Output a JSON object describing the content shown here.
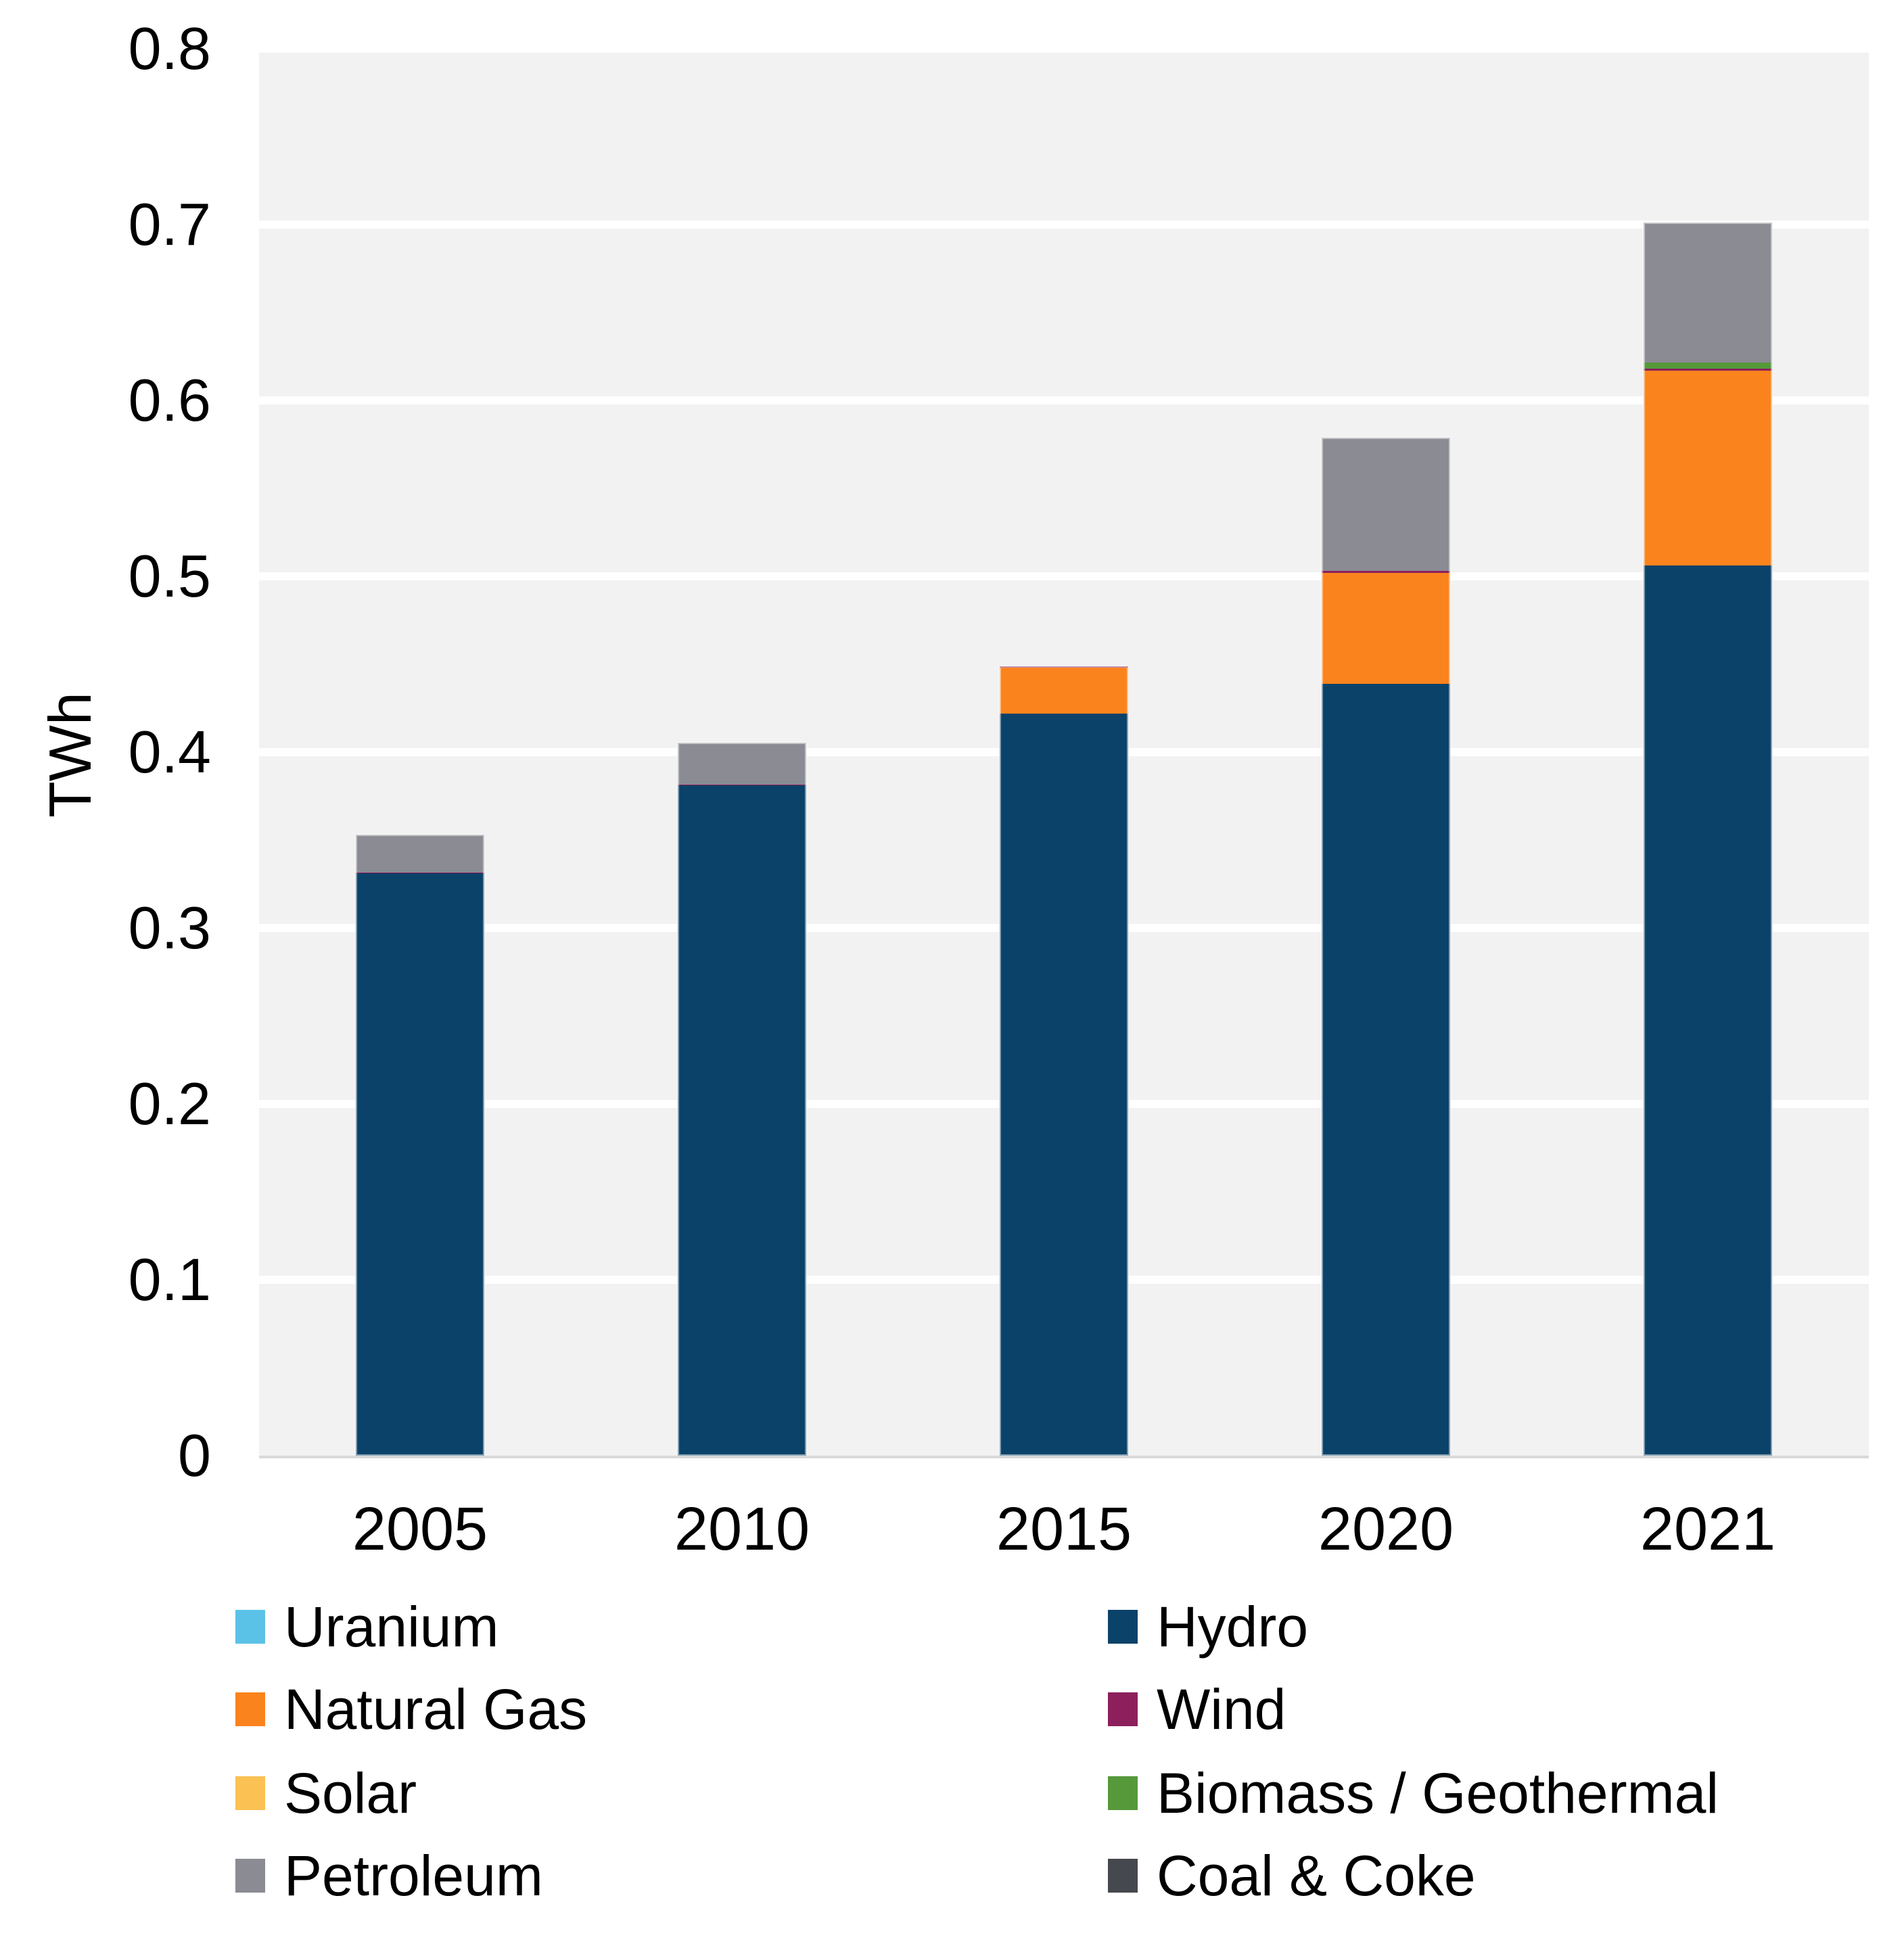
{
  "chart_data": {
    "type": "bar",
    "stacked": true,
    "title": "",
    "ylabel": "TWh",
    "xlabel": "",
    "categories": [
      "2005",
      "2010",
      "2015",
      "2020",
      "2021"
    ],
    "ylim": [
      0,
      0.8
    ],
    "ytick_step": 0.1,
    "yticks": [
      "0",
      "0.1",
      "0.2",
      "0.3",
      "0.4",
      "0.5",
      "0.6",
      "0.7",
      "0.8"
    ],
    "grid": "horizontal-white-lines-on-light-gray-band",
    "plot_background": "#F2F2F2",
    "gridline_color": "#FFFFFF",
    "axis_line_color": "#D9D9D9",
    "series": [
      {
        "name": "Uranium",
        "color": "#5BC2E7",
        "values": [
          0,
          0,
          0,
          0,
          0
        ]
      },
      {
        "name": "Hydro",
        "color": "#0B4269",
        "values": [
          0.331,
          0.381,
          0.422,
          0.439,
          0.506
        ]
      },
      {
        "name": "Natural Gas",
        "color": "#FB831D",
        "values": [
          0,
          0,
          0.026,
          0.063,
          0.111
        ]
      },
      {
        "name": "Wind",
        "color": "#8C1F5C",
        "values": [
          0.0005,
          0.0005,
          0.001,
          0.0012,
          0.0012
        ]
      },
      {
        "name": "Solar",
        "color": "#FBC153",
        "values": [
          0,
          0,
          0,
          0,
          0
        ]
      },
      {
        "name": "Biomass / Geothermal",
        "color": "#55993B",
        "values": [
          0,
          0,
          0,
          0,
          0.0033
        ]
      },
      {
        "name": "Petroleum",
        "color": "#8B8B93",
        "values": [
          0.0215,
          0.024,
          0,
          0.0755,
          0.0795
        ]
      },
      {
        "name": "Coal & Coke",
        "color": "#45484E",
        "values": [
          0,
          0,
          0,
          0,
          0
        ]
      }
    ],
    "legend": {
      "position": "bottom",
      "columns": [
        [
          "Uranium",
          "Natural Gas",
          "Solar",
          "Petroleum"
        ],
        [
          "Hydro",
          "Wind",
          "Biomass / Geothermal",
          "Coal & Coke"
        ]
      ]
    }
  },
  "layout_text": {
    "y_axis_title": "TWh"
  }
}
